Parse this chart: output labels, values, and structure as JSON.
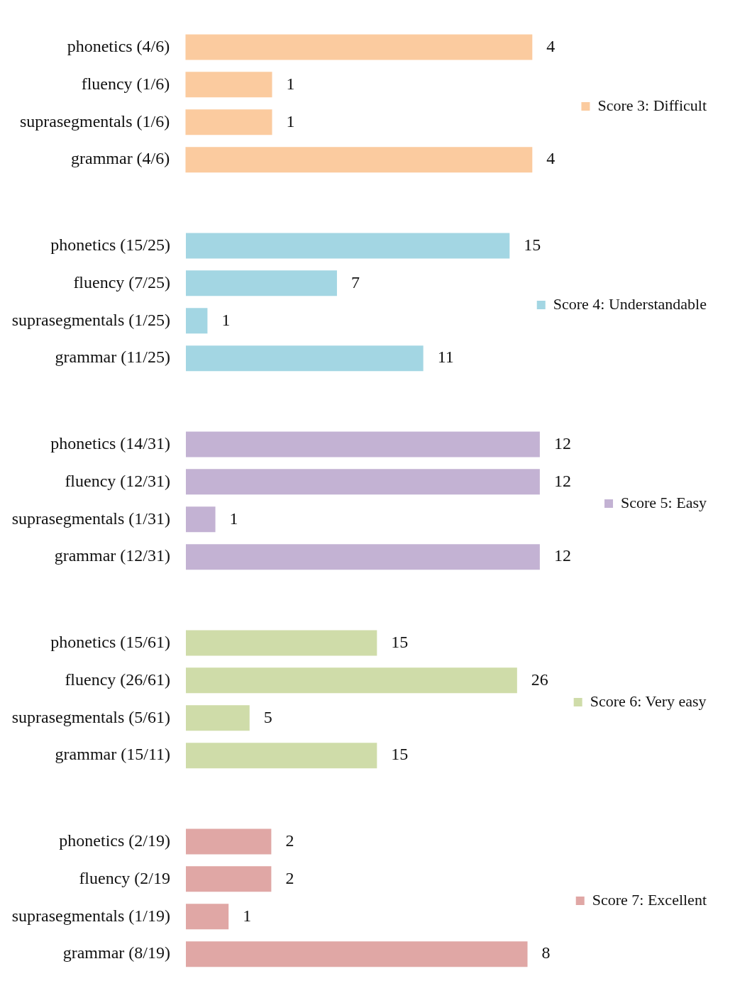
{
  "chart_data": [
    {
      "type": "bar",
      "orientation": "horizontal",
      "categories": [
        "phonetics (4/6)",
        "fluency (1/6)",
        "suprasegmentals (1/6)",
        "grammar (4/6)"
      ],
      "series": [
        {
          "name": "Score 3: Difficult",
          "color": "#fbcb9f",
          "values": [
            4,
            1,
            1,
            4
          ]
        }
      ],
      "data_labels": true,
      "legend": "right",
      "tick_labels": "y",
      "grid": false
    },
    {
      "type": "bar",
      "orientation": "horizontal",
      "categories": [
        "phonetics (15/25)",
        "fluency (7/25)",
        "suprasegmentals (1/25)",
        "grammar (11/25)"
      ],
      "series": [
        {
          "name": "Score 4: Understandable",
          "color": "#a3d6e3",
          "values": [
            15,
            7,
            1,
            11
          ]
        }
      ],
      "data_labels": true,
      "legend": "right",
      "tick_labels": "y",
      "grid": false
    },
    {
      "type": "bar",
      "orientation": "horizontal",
      "categories": [
        "phonetics (14/31)",
        "fluency (12/31)",
        "suprasegmentals (1/31)",
        "grammar (12/31)"
      ],
      "series": [
        {
          "name": "Score 5: Easy",
          "color": "#c3b2d3",
          "values": [
            12,
            12,
            1,
            12
          ]
        }
      ],
      "data_labels": true,
      "legend": "right",
      "tick_labels": "y",
      "grid": false
    },
    {
      "type": "bar",
      "orientation": "horizontal",
      "categories": [
        "phonetics (15/61)",
        "fluency (26/61)",
        "suprasegmentals (5/61)",
        "grammar (15/11)"
      ],
      "series": [
        {
          "name": "Score 6: Very easy",
          "color": "#cfdca9",
          "values": [
            15,
            26,
            5,
            15
          ]
        }
      ],
      "data_labels": true,
      "legend": "right",
      "tick_labels": "y",
      "grid": false
    },
    {
      "type": "bar",
      "orientation": "horizontal",
      "categories": [
        "phonetics (2/19)",
        "fluency (2/19",
        "suprasegmentals (1/19)",
        "grammar (8/19)"
      ],
      "series": [
        {
          "name": "Score 7: Excellent",
          "color": "#e0a7a5",
          "values": [
            2,
            2,
            1,
            8
          ]
        }
      ],
      "data_labels": true,
      "legend": "right",
      "tick_labels": "y",
      "grid": false
    }
  ]
}
